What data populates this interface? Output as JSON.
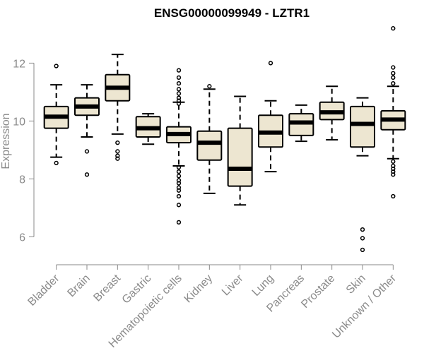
{
  "chart_data": {
    "type": "boxplot",
    "title": "ENSG00000099949 - LZTR1",
    "xlabel": "",
    "ylabel": "Expression",
    "ylim": [
      5.4,
      13.4
    ],
    "yticks": [
      6,
      8,
      10,
      12
    ],
    "colors": {
      "box_fill": "#ede6d1",
      "stroke": "#000000",
      "axis": "#8a8a8a"
    },
    "categories": [
      "Bladder",
      "Brain",
      "Breast",
      "Gastric",
      "Hematopoietic cells",
      "Kidney",
      "Liver",
      "Lung",
      "Pancreas",
      "Prostate",
      "Skin",
      "Unknown / Other"
    ],
    "boxes": [
      {
        "name": "Bladder",
        "whisker_low": 8.75,
        "q1": 9.75,
        "median": 10.15,
        "q3": 10.5,
        "whisker_high": 11.25,
        "outliers": [
          11.9,
          8.55
        ]
      },
      {
        "name": "Brain",
        "whisker_low": 9.45,
        "q1": 10.2,
        "median": 10.5,
        "q3": 10.8,
        "whisker_high": 11.25,
        "outliers": [
          8.95,
          8.15
        ]
      },
      {
        "name": "Breast",
        "whisker_low": 9.55,
        "q1": 10.7,
        "median": 11.15,
        "q3": 11.6,
        "whisker_high": 12.3,
        "outliers": [
          9.25,
          8.95,
          8.8,
          8.7
        ]
      },
      {
        "name": "Gastric",
        "whisker_low": 9.2,
        "q1": 9.45,
        "median": 9.75,
        "q3": 10.15,
        "whisker_high": 10.25,
        "outliers": []
      },
      {
        "name": "Hematopoietic cells",
        "whisker_low": 8.45,
        "q1": 9.25,
        "median": 9.55,
        "q3": 9.8,
        "whisker_high": 10.65,
        "outliers": [
          11.75,
          11.5,
          11.3,
          11.1,
          10.95,
          10.8,
          10.7,
          10.6,
          8.4,
          8.25,
          8.1,
          7.95,
          7.85,
          7.7,
          7.6,
          7.4,
          7.1,
          6.5
        ]
      },
      {
        "name": "Kidney",
        "whisker_low": 7.5,
        "q1": 8.65,
        "median": 9.25,
        "q3": 9.65,
        "whisker_high": 11.1,
        "outliers": [
          11.2
        ]
      },
      {
        "name": "Liver",
        "whisker_low": 7.1,
        "q1": 7.75,
        "median": 8.35,
        "q3": 9.75,
        "whisker_high": 10.85,
        "outliers": []
      },
      {
        "name": "Lung",
        "whisker_low": 8.25,
        "q1": 9.1,
        "median": 9.6,
        "q3": 10.2,
        "whisker_high": 10.7,
        "outliers": [
          12.0
        ]
      },
      {
        "name": "Pancreas",
        "whisker_low": 9.3,
        "q1": 9.5,
        "median": 9.95,
        "q3": 10.25,
        "whisker_high": 10.55,
        "outliers": []
      },
      {
        "name": "Prostate",
        "whisker_low": 9.35,
        "q1": 10.05,
        "median": 10.3,
        "q3": 10.65,
        "whisker_high": 11.2,
        "outliers": []
      },
      {
        "name": "Skin",
        "whisker_low": 8.8,
        "q1": 9.1,
        "median": 9.9,
        "q3": 10.5,
        "whisker_high": 10.8,
        "outliers": [
          6.25,
          5.95,
          5.55
        ]
      },
      {
        "name": "Unknown / Other",
        "whisker_low": 8.7,
        "q1": 9.7,
        "median": 10.05,
        "q3": 10.35,
        "whisker_high": 11.2,
        "outliers": [
          13.2,
          11.85,
          11.65,
          11.5,
          11.3,
          8.6,
          8.45,
          8.35,
          8.25,
          8.15,
          7.4
        ]
      }
    ]
  }
}
